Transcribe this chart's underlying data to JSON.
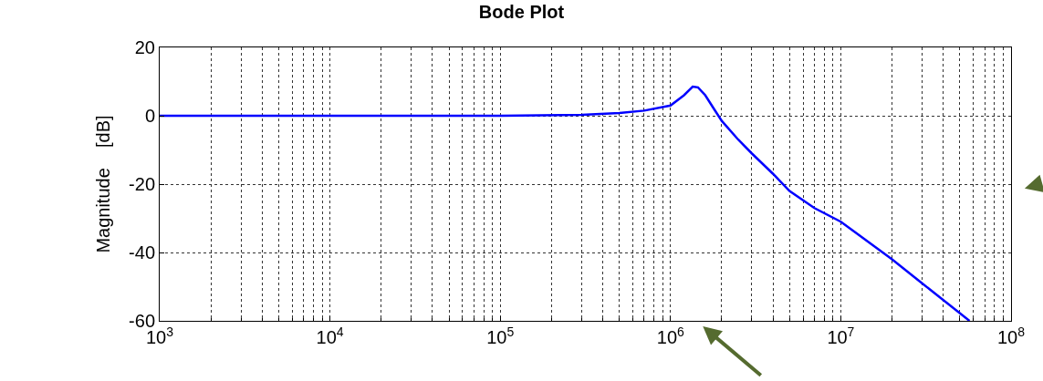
{
  "chart_data": {
    "type": "line",
    "title": "Bode Plot",
    "ylabel": "Magnitude    [dB]",
    "log": "x",
    "grid": true,
    "marker": "none",
    "line_style": "solid",
    "x": [
      1000,
      10000,
      100000,
      300000,
      500000,
      700000,
      1000000,
      1200000,
      1350000,
      1450000,
      1600000,
      1800000,
      2000000,
      2500000,
      3000000,
      4000000,
      5000000,
      7000000,
      10000000,
      20000000,
      30000000,
      57000000
    ],
    "series": [
      {
        "color": "#0000ff",
        "values": [
          0,
          0,
          0,
          0.3,
          0.8,
          1.5,
          3,
          6,
          8.5,
          8.3,
          6,
          2,
          -1.5,
          -7,
          -11,
          -17,
          -22,
          -27,
          -31,
          -42,
          -49,
          -60
        ]
      }
    ],
    "xlim": [
      1000,
      100000000
    ],
    "xticks": [
      {
        "value": 1000,
        "label": "10$^{3}$"
      },
      {
        "value": 10000,
        "label": "10$^{4}$"
      },
      {
        "value": 100000,
        "label": "10$^{5}$"
      },
      {
        "value": 1000000,
        "label": "10$^{6}$"
      },
      {
        "value": 10000000,
        "label": "10$^{7}$"
      },
      {
        "value": 100000000,
        "label": "10$^{8}$"
      }
    ],
    "ylim": [
      -60,
      20
    ],
    "yticks": [
      -60,
      -40,
      -20,
      0,
      20
    ]
  }
}
